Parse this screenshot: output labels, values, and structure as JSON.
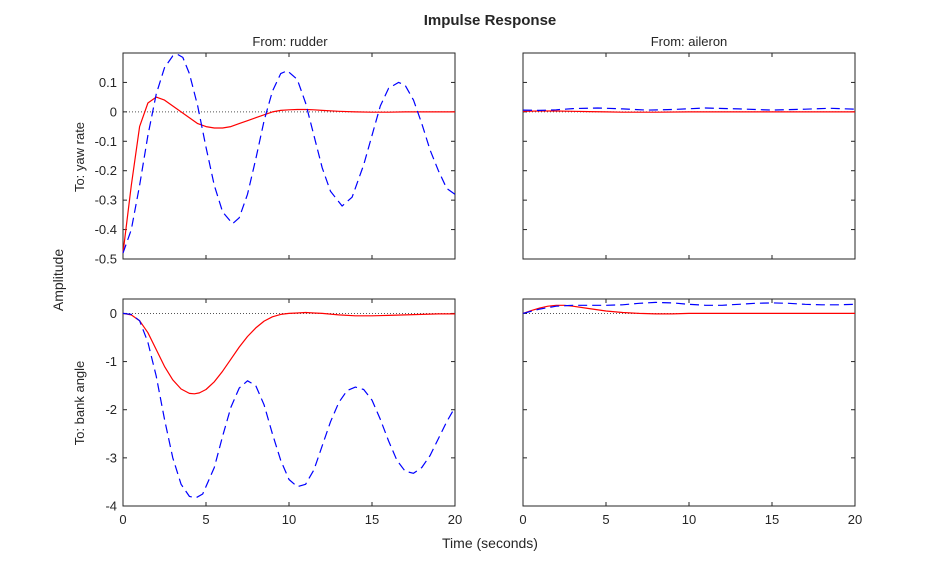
{
  "chart_data": {
    "type": "line",
    "title": "Impulse Response",
    "xlabel": "Time (seconds)",
    "ylabel": "Amplitude",
    "columns": [
      "From: rudder",
      "From: aileron"
    ],
    "rows": [
      "To: yaw rate",
      "To: bank angle"
    ],
    "xlim": [
      0,
      20
    ],
    "xticks": [
      0,
      5,
      10,
      15,
      20
    ],
    "grid": false,
    "colors": {
      "series_1": "#ff0000",
      "series_2": "#0000ff",
      "zero_line": "#555555"
    },
    "subplots": [
      {
        "row": 0,
        "col": 0,
        "ylim": [
          -0.5,
          0.2
        ],
        "yticks": [
          -0.5,
          -0.4,
          -0.3,
          -0.2,
          -0.1,
          0,
          0.1
        ],
        "series": [
          {
            "style": "solid",
            "color": "#ff0000",
            "x": [
              0,
              0.5,
              1,
              1.5,
              2,
              2.5,
              3,
              3.5,
              4,
              4.5,
              5,
              5.5,
              6,
              6.5,
              7,
              7.5,
              8,
              8.5,
              9,
              9.5,
              10,
              10.5,
              11,
              11.5,
              12,
              13,
              14,
              15,
              16,
              17,
              18,
              19,
              20
            ],
            "y": [
              -0.48,
              -0.25,
              -0.05,
              0.03,
              0.05,
              0.04,
              0.02,
              0.0,
              -0.02,
              -0.04,
              -0.05,
              -0.055,
              -0.055,
              -0.05,
              -0.04,
              -0.03,
              -0.02,
              -0.01,
              0.0,
              0.005,
              0.007,
              0.008,
              0.008,
              0.007,
              0.005,
              0.002,
              0.0,
              -0.001,
              -0.001,
              0.0,
              0.0,
              0.0,
              0.0
            ]
          },
          {
            "style": "dashed",
            "color": "#0000ff",
            "x": [
              0,
              0.5,
              1,
              1.5,
              2,
              2.5,
              3,
              3.3,
              3.6,
              4,
              4.5,
              5,
              5.5,
              6,
              6.6,
              7,
              7.5,
              8,
              8.5,
              9,
              9.5,
              9.9,
              10.5,
              11,
              11.5,
              12,
              12.5,
              13.2,
              13.8,
              14.5,
              15,
              15.5,
              16,
              16.6,
              17,
              17.5,
              18,
              18.5,
              19,
              19.5,
              20
            ],
            "y": [
              -0.48,
              -0.4,
              -0.25,
              -0.08,
              0.06,
              0.15,
              0.19,
              0.195,
              0.185,
              0.13,
              0.02,
              -0.12,
              -0.25,
              -0.34,
              -0.38,
              -0.36,
              -0.28,
              -0.16,
              -0.03,
              0.07,
              0.13,
              0.14,
              0.11,
              0.03,
              -0.08,
              -0.19,
              -0.27,
              -0.32,
              -0.29,
              -0.18,
              -0.08,
              0.02,
              0.08,
              0.1,
              0.09,
              0.04,
              -0.04,
              -0.13,
              -0.2,
              -0.26,
              -0.28
            ]
          }
        ]
      },
      {
        "row": 0,
        "col": 1,
        "ylim": [
          -0.5,
          0.2
        ],
        "yticks": [],
        "series": [
          {
            "style": "solid",
            "color": "#ff0000",
            "x": [
              0,
              1,
              2,
              3,
              4,
              5,
              6,
              8,
              10,
              12,
              14,
              16,
              18,
              20
            ],
            "y": [
              0.002,
              0.003,
              0.003,
              0.002,
              0.001,
              0.0,
              -0.001,
              -0.001,
              0.0,
              0.0,
              0.0,
              0.0,
              0.0,
              0.0
            ]
          },
          {
            "style": "dashed",
            "color": "#0000ff",
            "x": [
              0,
              1,
              2,
              3,
              4.5,
              6,
              7.5,
              9,
              11,
              13,
              15,
              17,
              18.5,
              20
            ],
            "y": [
              0.006,
              0.005,
              0.007,
              0.011,
              0.013,
              0.01,
              0.006,
              0.008,
              0.013,
              0.01,
              0.006,
              0.009,
              0.012,
              0.009
            ]
          }
        ]
      },
      {
        "row": 1,
        "col": 0,
        "ylim": [
          -4,
          0.3
        ],
        "yticks": [
          -4,
          -3,
          -2,
          -1,
          0
        ],
        "series": [
          {
            "style": "solid",
            "color": "#ff0000",
            "x": [
              0,
              0.5,
              1,
              1.5,
              2,
              2.5,
              3,
              3.5,
              4,
              4.3,
              4.6,
              5,
              5.5,
              6,
              6.5,
              7,
              7.5,
              8,
              8.5,
              9,
              9.5,
              10,
              10.5,
              11,
              11.5,
              12,
              13,
              14,
              15,
              16,
              17,
              18,
              19,
              20
            ],
            "y": [
              0.0,
              -0.03,
              -0.15,
              -0.4,
              -0.75,
              -1.1,
              -1.38,
              -1.57,
              -1.66,
              -1.67,
              -1.65,
              -1.58,
              -1.42,
              -1.2,
              -0.95,
              -0.7,
              -0.48,
              -0.3,
              -0.16,
              -0.07,
              -0.02,
              0.0,
              0.01,
              0.02,
              0.01,
              0.0,
              -0.03,
              -0.05,
              -0.05,
              -0.04,
              -0.03,
              -0.02,
              -0.01,
              -0.01
            ]
          },
          {
            "style": "dashed",
            "color": "#0000ff",
            "x": [
              0,
              0.5,
              1,
              1.5,
              2,
              2.5,
              3,
              3.5,
              4,
              4.4,
              4.8,
              5.5,
              6,
              6.5,
              7,
              7.5,
              8,
              8.5,
              9,
              9.5,
              10,
              10.5,
              11,
              11.5,
              12,
              12.5,
              13,
              13.5,
              14,
              14.5,
              15,
              15.5,
              16,
              16.5,
              17,
              17.5,
              18,
              18.5,
              19,
              19.5,
              20
            ],
            "y": [
              0.0,
              -0.02,
              -0.15,
              -0.6,
              -1.3,
              -2.2,
              -3.0,
              -3.55,
              -3.8,
              -3.83,
              -3.75,
              -3.2,
              -2.55,
              -1.95,
              -1.55,
              -1.4,
              -1.5,
              -1.9,
              -2.5,
              -3.05,
              -3.45,
              -3.6,
              -3.55,
              -3.25,
              -2.75,
              -2.25,
              -1.85,
              -1.6,
              -1.53,
              -1.58,
              -1.8,
              -2.2,
              -2.65,
              -3.05,
              -3.28,
              -3.32,
              -3.2,
              -2.95,
              -2.6,
              -2.25,
              -1.95
            ]
          }
        ]
      },
      {
        "row": 1,
        "col": 1,
        "ylim": [
          -4,
          0.3
        ],
        "yticks": [],
        "series": [
          {
            "style": "solid",
            "color": "#ff0000",
            "x": [
              0,
              0.5,
              1,
              1.5,
              2,
              2.5,
              3,
              4,
              5,
              6,
              7,
              8,
              9,
              10,
              12,
              14,
              16,
              18,
              20
            ],
            "y": [
              0.0,
              0.06,
              0.11,
              0.15,
              0.17,
              0.17,
              0.15,
              0.1,
              0.05,
              0.02,
              0.0,
              -0.01,
              -0.01,
              0.0,
              0.0,
              0.0,
              0.0,
              0.0,
              0.0
            ]
          },
          {
            "style": "dashed",
            "color": "#0000ff",
            "x": [
              0,
              1,
              2,
              3,
              4,
              5,
              6,
              7,
              8,
              9,
              10,
              11,
              12,
              13,
              14,
              15,
              16,
              17,
              18,
              19,
              20
            ],
            "y": [
              0.0,
              0.09,
              0.15,
              0.17,
              0.17,
              0.17,
              0.18,
              0.21,
              0.23,
              0.22,
              0.19,
              0.17,
              0.17,
              0.19,
              0.21,
              0.22,
              0.21,
              0.19,
              0.18,
              0.18,
              0.19
            ]
          }
        ]
      }
    ]
  }
}
